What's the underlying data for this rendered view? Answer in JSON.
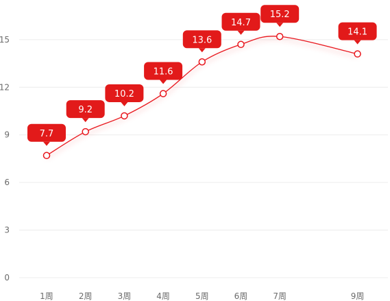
{
  "chart_data": {
    "type": "line",
    "smooth": true,
    "grid": true,
    "categories": [
      "1周",
      "2周",
      "3周",
      "4周",
      "5周",
      "6周",
      "7周",
      "9周"
    ],
    "x": [
      1,
      2,
      3,
      4,
      5,
      6,
      7,
      9
    ],
    "series": [
      {
        "values": [
          7.7,
          9.2,
          10.2,
          11.6,
          13.6,
          14.7,
          15.2,
          14.1
        ],
        "data_labels": [
          "7.7",
          "9.2",
          "10.2",
          "11.6",
          "13.6",
          "14.7",
          "15.2",
          "14.1"
        ]
      }
    ],
    "yticks": [
      "0",
      "3",
      "6",
      "9",
      "12",
      "15"
    ],
    "ylim": [
      0,
      17.5
    ],
    "title": "",
    "xlabel": "",
    "ylabel": "",
    "colors": {
      "line": "#e8141b",
      "label_bg": "#e21a1a",
      "label_text": "#ffffff",
      "grid": "#ececec",
      "tick_text": "#6b6b6b",
      "marker_fill": "#ffffff"
    }
  }
}
